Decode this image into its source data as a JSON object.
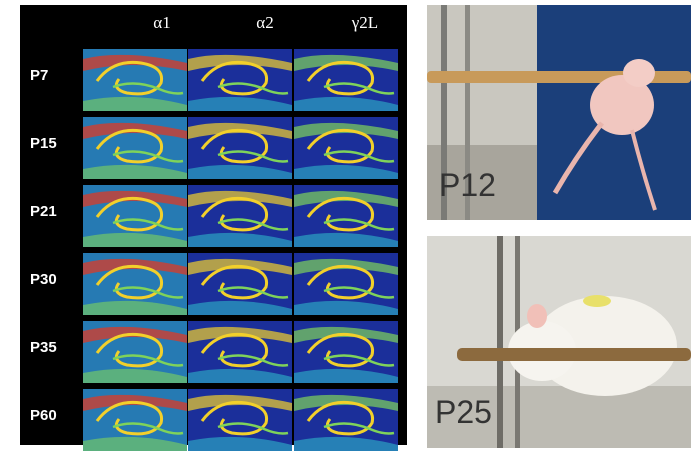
{
  "columns": [
    "α1",
    "α2",
    "γ2L"
  ],
  "rows": [
    "P7",
    "P15",
    "P21",
    "P30",
    "P35",
    "P60"
  ],
  "photos": [
    {
      "label": "P12"
    },
    {
      "label": "P25"
    }
  ],
  "colors": {
    "low": "#1b2f9a",
    "mid": "#2fb8c9",
    "midhigh": "#7fd35a",
    "high": "#f2d02b",
    "peak": "#e8361d"
  }
}
